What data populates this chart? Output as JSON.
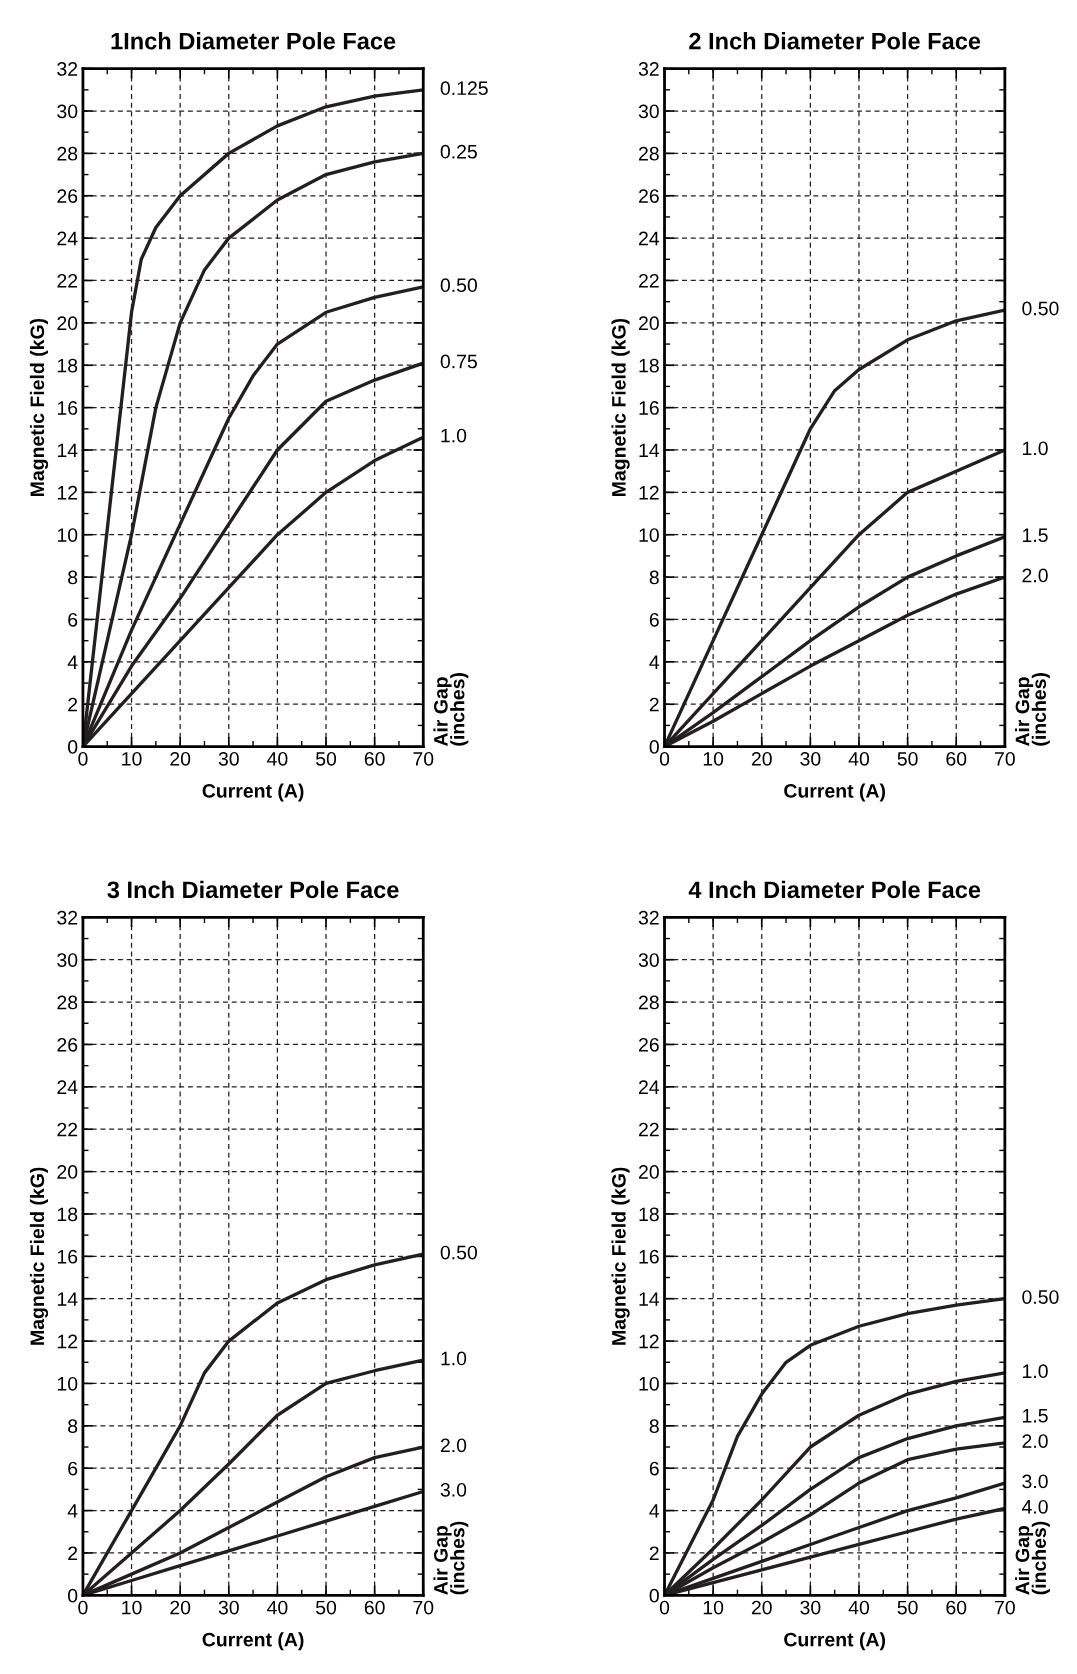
{
  "chart_data": [
    {
      "type": "line",
      "title": "1Inch Diameter Pole Face",
      "xlabel": "Current (A)",
      "ylabel": "Magnetic Field (kG)",
      "legend_title": "Air Gap\n(inches)",
      "xlim": [
        0,
        70
      ],
      "ylim": [
        0,
        32
      ],
      "xticks": [
        0,
        10,
        20,
        30,
        40,
        50,
        60,
        70
      ],
      "yticks": [
        0,
        2,
        4,
        6,
        8,
        10,
        12,
        14,
        16,
        18,
        20,
        22,
        24,
        26,
        28,
        30,
        32
      ],
      "grid": true,
      "legend": false,
      "line_style": "solid",
      "marker": "none",
      "series": [
        {
          "name": "0.125",
          "color": "#231f20",
          "x": [
            0,
            10,
            12,
            15,
            20,
            30,
            40,
            50,
            60,
            70
          ],
          "values": [
            0,
            20.5,
            23,
            24.5,
            26,
            28,
            29.3,
            30.2,
            30.7,
            31
          ]
        },
        {
          "name": "0.25",
          "color": "#231f20",
          "x": [
            0,
            10,
            15,
            20,
            25,
            30,
            40,
            50,
            60,
            70
          ],
          "values": [
            0,
            10,
            16,
            20,
            22.5,
            24,
            25.8,
            27,
            27.6,
            28
          ]
        },
        {
          "name": "0.50",
          "color": "#231f20",
          "x": [
            0,
            10,
            20,
            30,
            35,
            40,
            50,
            60,
            70
          ],
          "values": [
            0,
            5.5,
            10.5,
            15.5,
            17.5,
            19,
            20.5,
            21.2,
            21.7
          ]
        },
        {
          "name": "0.75",
          "color": "#231f20",
          "x": [
            0,
            10,
            20,
            30,
            40,
            50,
            60,
            70
          ],
          "values": [
            0,
            3.8,
            7,
            10.5,
            14,
            16.3,
            17.3,
            18.1
          ]
        },
        {
          "name": "1.0",
          "color": "#231f20",
          "x": [
            0,
            10,
            20,
            30,
            40,
            50,
            60,
            70
          ],
          "values": [
            0,
            2.5,
            5,
            7.5,
            10,
            12,
            13.5,
            14.6
          ]
        }
      ]
    },
    {
      "type": "line",
      "title": "2 Inch Diameter Pole Face",
      "xlabel": "Current (A)",
      "ylabel": "Magnetic Field (kG)",
      "legend_title": "Air Gap\n(inches)",
      "xlim": [
        0,
        70
      ],
      "ylim": [
        0,
        32
      ],
      "xticks": [
        0,
        10,
        20,
        30,
        40,
        50,
        60,
        70
      ],
      "yticks": [
        0,
        2,
        4,
        6,
        8,
        10,
        12,
        14,
        16,
        18,
        20,
        22,
        24,
        26,
        28,
        30,
        32
      ],
      "grid": true,
      "legend": false,
      "line_style": "solid",
      "marker": "none",
      "series": [
        {
          "name": "0.50",
          "color": "#231f20",
          "x": [
            0,
            10,
            20,
            25,
            30,
            35,
            40,
            50,
            60,
            70
          ],
          "values": [
            0,
            5,
            10,
            12.5,
            15,
            16.8,
            17.8,
            19.2,
            20.1,
            20.6
          ]
        },
        {
          "name": "1.0",
          "color": "#231f20",
          "x": [
            0,
            10,
            20,
            30,
            40,
            50,
            60,
            70
          ],
          "values": [
            0,
            2.5,
            5,
            7.5,
            10,
            12,
            13,
            14
          ]
        },
        {
          "name": "1.5",
          "color": "#231f20",
          "x": [
            0,
            10,
            20,
            30,
            40,
            50,
            60,
            70
          ],
          "values": [
            0,
            1.6,
            3.3,
            5,
            6.6,
            8,
            9,
            9.9
          ]
        },
        {
          "name": "2.0",
          "color": "#231f20",
          "x": [
            0,
            10,
            20,
            30,
            40,
            50,
            60,
            70
          ],
          "values": [
            0,
            1.2,
            2.5,
            3.8,
            5,
            6.2,
            7.2,
            8
          ]
        }
      ]
    },
    {
      "type": "line",
      "title": "3 Inch Diameter Pole Face",
      "xlabel": "Current (A)",
      "ylabel": "Magnetic Field (kG)",
      "legend_title": "Air Gap\n(inches)",
      "xlim": [
        0,
        70
      ],
      "ylim": [
        0,
        32
      ],
      "xticks": [
        0,
        10,
        20,
        30,
        40,
        50,
        60,
        70
      ],
      "yticks": [
        0,
        2,
        4,
        6,
        8,
        10,
        12,
        14,
        16,
        18,
        20,
        22,
        24,
        26,
        28,
        30,
        32
      ],
      "grid": true,
      "legend": false,
      "line_style": "solid",
      "marker": "none",
      "series": [
        {
          "name": "0.50",
          "color": "#231f20",
          "x": [
            0,
            10,
            20,
            25,
            30,
            40,
            50,
            60,
            70
          ],
          "values": [
            0,
            4,
            8,
            10.5,
            12,
            13.8,
            14.9,
            15.6,
            16.1
          ]
        },
        {
          "name": "1.0",
          "color": "#231f20",
          "x": [
            0,
            10,
            20,
            30,
            40,
            50,
            60,
            70
          ],
          "values": [
            0,
            2,
            4,
            6.2,
            8.5,
            10,
            10.6,
            11.1
          ]
        },
        {
          "name": "2.0",
          "color": "#231f20",
          "x": [
            0,
            10,
            20,
            30,
            40,
            50,
            60,
            70
          ],
          "values": [
            0,
            1,
            2,
            3.2,
            4.4,
            5.6,
            6.5,
            7
          ]
        },
        {
          "name": "3.0",
          "color": "#231f20",
          "x": [
            0,
            10,
            20,
            30,
            40,
            50,
            60,
            70
          ],
          "values": [
            0,
            0.7,
            1.4,
            2.1,
            2.8,
            3.5,
            4.2,
            4.9
          ]
        }
      ]
    },
    {
      "type": "line",
      "title": "4 Inch Diameter Pole Face",
      "xlabel": "Current (A)",
      "ylabel": "Magnetic Field (kG)",
      "legend_title": "Air Gap\n(inches)",
      "xlim": [
        0,
        70
      ],
      "ylim": [
        0,
        32
      ],
      "xticks": [
        0,
        10,
        20,
        30,
        40,
        50,
        60,
        70
      ],
      "yticks": [
        0,
        2,
        4,
        6,
        8,
        10,
        12,
        14,
        16,
        18,
        20,
        22,
        24,
        26,
        28,
        30,
        32
      ],
      "grid": true,
      "legend": false,
      "line_style": "solid",
      "marker": "none",
      "series": [
        {
          "name": "0.50",
          "color": "#231f20",
          "x": [
            0,
            10,
            15,
            20,
            25,
            30,
            40,
            50,
            60,
            70
          ],
          "values": [
            0,
            4.5,
            7.5,
            9.5,
            11,
            11.8,
            12.7,
            13.3,
            13.7,
            14
          ]
        },
        {
          "name": "1.0",
          "color": "#231f20",
          "x": [
            0,
            10,
            20,
            30,
            40,
            50,
            60,
            70
          ],
          "values": [
            0,
            2.2,
            4.5,
            7,
            8.5,
            9.5,
            10.1,
            10.5
          ]
        },
        {
          "name": "1.5",
          "color": "#231f20",
          "x": [
            0,
            10,
            20,
            30,
            40,
            50,
            60,
            70
          ],
          "values": [
            0,
            1.7,
            3.3,
            5,
            6.5,
            7.4,
            8,
            8.4
          ]
        },
        {
          "name": "2.0",
          "color": "#231f20",
          "x": [
            0,
            10,
            20,
            30,
            40,
            50,
            60,
            70
          ],
          "values": [
            0,
            1.3,
            2.5,
            3.8,
            5.3,
            6.4,
            6.9,
            7.2
          ]
        },
        {
          "name": "3.0",
          "color": "#231f20",
          "x": [
            0,
            10,
            20,
            30,
            40,
            50,
            60,
            70
          ],
          "values": [
            0,
            0.8,
            1.6,
            2.4,
            3.2,
            4,
            4.6,
            5.3
          ]
        },
        {
          "name": "4.0",
          "color": "#231f20",
          "x": [
            0,
            10,
            20,
            30,
            40,
            50,
            60,
            70
          ],
          "values": [
            0,
            0.6,
            1.2,
            1.8,
            2.4,
            3,
            3.6,
            4.1
          ]
        }
      ]
    }
  ]
}
